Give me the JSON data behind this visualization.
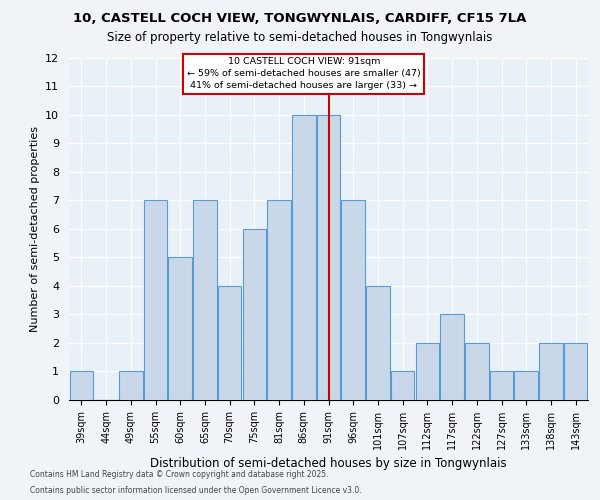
{
  "title_line1": "10, CASTELL COCH VIEW, TONGWYNLAIS, CARDIFF, CF15 7LA",
  "title_line2": "Size of property relative to semi-detached houses in Tongwynlais",
  "xlabel": "Distribution of semi-detached houses by size in Tongwynlais",
  "ylabel": "Number of semi-detached properties",
  "categories": [
    "39sqm",
    "44sqm",
    "49sqm",
    "55sqm",
    "60sqm",
    "65sqm",
    "70sqm",
    "75sqm",
    "81sqm",
    "86sqm",
    "91sqm",
    "96sqm",
    "101sqm",
    "107sqm",
    "112sqm",
    "117sqm",
    "122sqm",
    "127sqm",
    "133sqm",
    "138sqm",
    "143sqm"
  ],
  "values": [
    1,
    0,
    1,
    7,
    5,
    7,
    4,
    6,
    7,
    10,
    10,
    7,
    4,
    1,
    2,
    3,
    2,
    1,
    1,
    2,
    2
  ],
  "bar_color": "#c8d8e8",
  "bar_edgecolor": "#5b9bd5",
  "vline_x": 10,
  "vline_color": "#cc0000",
  "ylim": [
    0,
    12
  ],
  "yticks": [
    0,
    1,
    2,
    3,
    4,
    5,
    6,
    7,
    8,
    9,
    10,
    11,
    12
  ],
  "annotation_title": "10 CASTELL COCH VIEW: 91sqm",
  "annotation_line1": "← 59% of semi-detached houses are smaller (47)",
  "annotation_line2": "41% of semi-detached houses are larger (33) →",
  "annotation_box_color": "#cc0000",
  "footer_line1": "Contains HM Land Registry data © Crown copyright and database right 2025.",
  "footer_line2": "Contains public sector information licensed under the Open Government Licence v3.0.",
  "plot_bg_color": "#e8f0f8",
  "fig_bg_color": "#f0f4f8"
}
